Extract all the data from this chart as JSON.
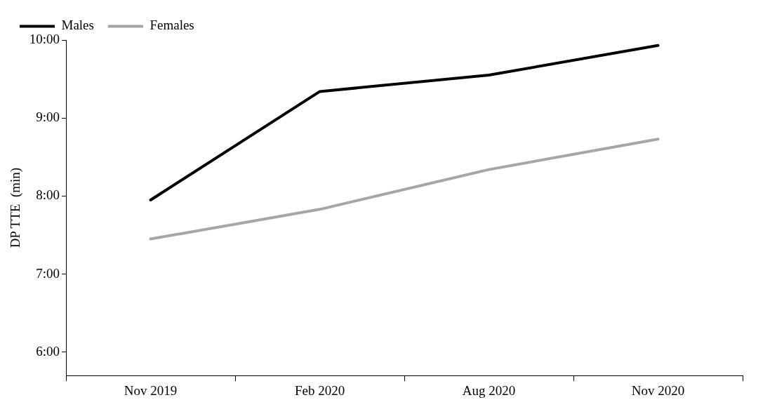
{
  "chart_data": {
    "type": "line",
    "ylabel": "DP TTE  (min)",
    "categories": [
      "Nov 2019",
      "Feb 2020",
      "Aug 2020",
      "Nov 2020"
    ],
    "series": [
      {
        "name": "Males",
        "color": "#000000",
        "values": [
          7.95,
          9.34,
          9.55,
          9.93
        ]
      },
      {
        "name": "Females",
        "color": "#a6a6a6",
        "values": [
          7.45,
          7.83,
          8.34,
          8.73
        ]
      }
    ],
    "ylim": [
      5.7,
      10
    ],
    "yticks": [
      {
        "value": 6,
        "label": "6:00"
      },
      {
        "value": 7,
        "label": "7:00"
      },
      {
        "value": 8,
        "label": "8:00"
      },
      {
        "value": 9,
        "label": "9:00"
      },
      {
        "value": 10,
        "label": "10:00"
      }
    ],
    "grid": false,
    "legend": "top left",
    "marker": "none",
    "line_style": "solid"
  }
}
